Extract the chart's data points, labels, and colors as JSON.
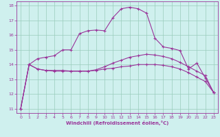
{
  "xlabel": "Windchill (Refroidissement éolien,°C)",
  "bg_color": "#cff0ee",
  "line_color": "#993399",
  "grid_color": "#99ccbb",
  "xlim": [
    -0.5,
    23.5
  ],
  "ylim": [
    10.7,
    18.3
  ],
  "xticks": [
    0,
    1,
    2,
    3,
    4,
    5,
    6,
    7,
    8,
    9,
    10,
    11,
    12,
    13,
    14,
    15,
    16,
    17,
    18,
    19,
    20,
    21,
    22,
    23
  ],
  "yticks": [
    11,
    12,
    13,
    14,
    15,
    16,
    17,
    18
  ],
  "curve1_x": [
    0,
    1,
    2,
    3,
    4,
    5,
    6,
    7,
    8,
    9,
    10,
    11,
    12,
    13,
    14,
    15,
    16,
    17,
    18,
    19,
    20,
    21,
    22,
    23
  ],
  "curve1_y": [
    11.0,
    14.0,
    13.7,
    13.6,
    13.6,
    13.6,
    13.55,
    13.55,
    13.55,
    13.65,
    13.85,
    14.1,
    14.3,
    14.5,
    14.6,
    14.7,
    14.65,
    14.55,
    14.4,
    14.15,
    13.85,
    13.55,
    13.25,
    12.1
  ],
  "curve2_x": [
    0,
    1,
    2,
    3,
    4,
    5,
    6,
    7,
    8,
    9,
    10,
    11,
    12,
    13,
    14,
    15,
    16,
    17,
    18,
    19,
    20,
    21,
    22,
    23
  ],
  "curve2_y": [
    11.0,
    14.0,
    14.4,
    14.5,
    14.6,
    15.0,
    15.0,
    16.1,
    16.3,
    16.35,
    16.3,
    17.2,
    17.8,
    17.9,
    17.8,
    17.5,
    15.8,
    15.2,
    15.1,
    14.95,
    13.7,
    14.1,
    13.1,
    12.1
  ],
  "curve3_x": [
    0,
    1,
    2,
    3,
    4,
    5,
    6,
    7,
    8,
    9,
    10,
    11,
    12,
    13,
    14,
    15,
    16,
    17,
    18,
    19,
    20,
    21,
    22,
    23
  ],
  "curve3_y": [
    11.0,
    14.0,
    13.7,
    13.6,
    13.55,
    13.55,
    13.55,
    13.55,
    13.55,
    13.6,
    13.7,
    13.75,
    13.85,
    13.9,
    14.0,
    14.0,
    14.0,
    13.95,
    13.85,
    13.7,
    13.45,
    13.15,
    12.85,
    12.1
  ]
}
